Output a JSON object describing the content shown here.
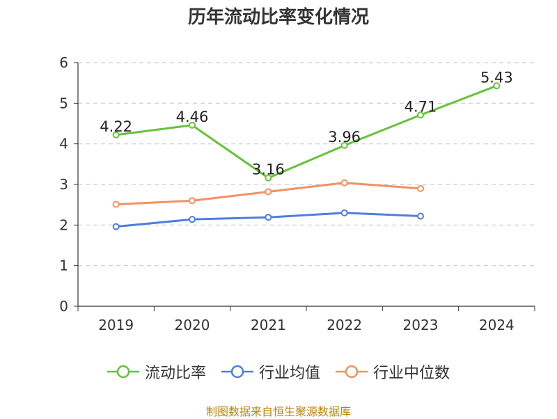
{
  "chart_data": {
    "type": "line",
    "title": "历年流动比率变化情况",
    "categories": [
      "2019",
      "2020",
      "2021",
      "2022",
      "2023",
      "2024"
    ],
    "series": [
      {
        "name": "流动比率",
        "color": "#67c23a",
        "values": [
          4.22,
          4.46,
          3.16,
          3.96,
          4.71,
          5.43
        ],
        "show_labels": true
      },
      {
        "name": "行业均值",
        "color": "#4e7fdd",
        "values": [
          1.96,
          2.14,
          2.19,
          2.3,
          2.22,
          null
        ],
        "show_labels": false
      },
      {
        "name": "行业中位数",
        "color": "#f59062",
        "values": [
          2.51,
          2.6,
          2.82,
          3.04,
          2.9,
          null
        ],
        "show_labels": false
      }
    ],
    "ylim": [
      0,
      6
    ],
    "yticks": [
      0,
      1,
      2,
      3,
      4,
      5,
      6
    ],
    "grid": "horizontal-dashed",
    "legend_position": "bottom"
  },
  "source_text": "制图数据来自恒生聚源数据库"
}
